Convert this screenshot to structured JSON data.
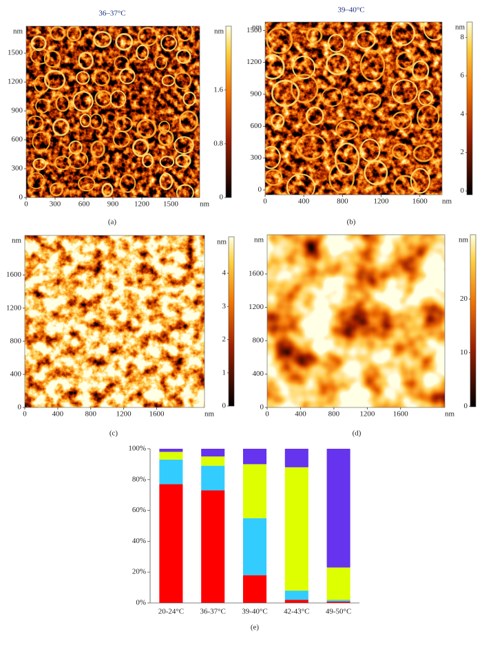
{
  "chart_data": [
    {
      "type": "image",
      "title": "36–37°C",
      "panel_label": "(a)",
      "x_label": "nm",
      "y_label": "nm",
      "xlim": [
        0,
        1800
      ],
      "ylim": [
        0,
        1780
      ],
      "xticks": [
        0,
        300,
        600,
        900,
        1200,
        1500
      ],
      "yticks": [
        0,
        300,
        600,
        900,
        1200,
        1500
      ],
      "colorbar": {
        "label": "nm",
        "lim": [
          0,
          2.55
        ],
        "ticks": [
          0,
          0.8,
          1.6
        ]
      }
    },
    {
      "type": "image",
      "title": "39–40°C",
      "panel_label": "(b)",
      "x_label": "nm",
      "y_label": "nm",
      "xlim": [
        0,
        1830
      ],
      "ylim": [
        -45,
        1580
      ],
      "xticks": [
        0,
        400,
        800,
        1200,
        1600
      ],
      "yticks": [
        0,
        300,
        600,
        900,
        1200,
        1500
      ],
      "colorbar": {
        "label": "nm",
        "lim": [
          -0.2,
          8.8
        ],
        "ticks": [
          0,
          2,
          4,
          6,
          8
        ]
      }
    },
    {
      "type": "image",
      "panel_label": "(c)",
      "x_label": "nm",
      "y_label": "nm",
      "xlim": [
        0,
        2180
      ],
      "ylim": [
        0,
        2080
      ],
      "xticks": [
        0,
        400,
        800,
        1200,
        1600
      ],
      "yticks": [
        0,
        400,
        800,
        1200,
        1600
      ],
      "colorbar": {
        "label": "nm",
        "lim": [
          0,
          5.1
        ],
        "ticks": [
          0,
          1,
          2,
          3,
          4
        ]
      }
    },
    {
      "type": "image",
      "panel_label": "(d)",
      "x_label": "nm",
      "y_label": "nm",
      "xlim": [
        0,
        2130
      ],
      "ylim": [
        0,
        2070
      ],
      "xticks": [
        0,
        400,
        800,
        1200,
        1600
      ],
      "yticks": [
        0,
        400,
        800,
        1200,
        1600
      ],
      "colorbar": {
        "label": "nm",
        "lim": [
          -0.1,
          32
        ],
        "ticks": [
          0,
          10,
          20
        ]
      }
    },
    {
      "type": "bar",
      "stacked": true,
      "panel_label": "(e)",
      "categories": [
        "20-24°C",
        "36-37°C",
        "39-40°C",
        "42-43°C",
        "49-50°C"
      ],
      "series": [
        {
          "color": "#ff0000",
          "values": [
            77,
            73,
            18,
            2,
            1
          ]
        },
        {
          "color": "#33ccff",
          "values": [
            16,
            16,
            37,
            6,
            1
          ]
        },
        {
          "color": "#ddff00",
          "values": [
            5,
            6,
            35,
            80,
            21
          ]
        },
        {
          "color": "#6633ee",
          "values": [
            2,
            5,
            10,
            12,
            77
          ]
        }
      ],
      "ylim": [
        0,
        100
      ],
      "yticks": [
        {
          "value": 0,
          "label": "0%"
        },
        {
          "value": 20,
          "label": "20%"
        },
        {
          "value": 40,
          "label": "40%"
        },
        {
          "value": 60,
          "label": "60%"
        },
        {
          "value": 80,
          "label": "80%"
        },
        {
          "value": 100,
          "label": "100%"
        }
      ]
    }
  ]
}
